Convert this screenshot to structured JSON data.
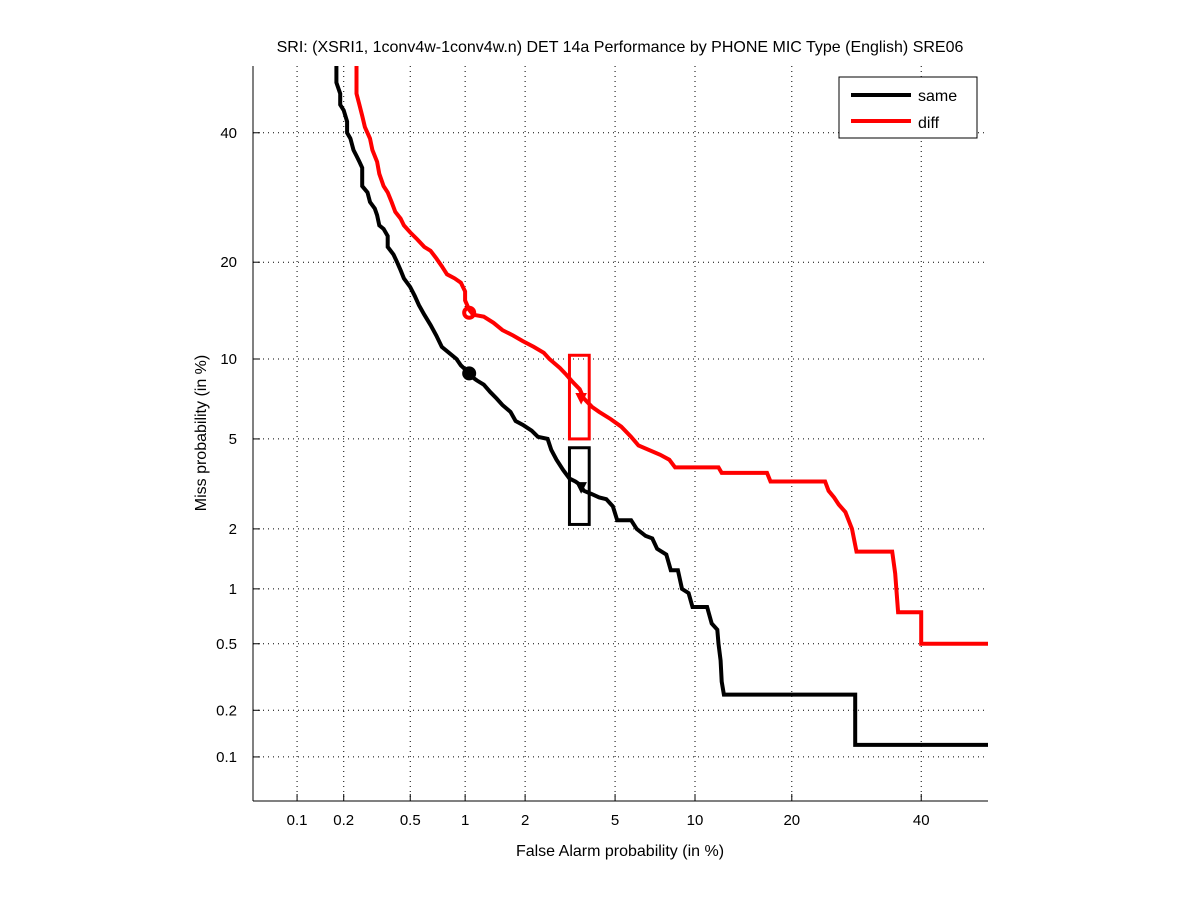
{
  "chart_data": {
    "type": "line",
    "subtype": "DET curve (normal deviate scale)",
    "title": "SRI: (XSRI1, 1conv4w-1conv4w.n) DET 14a Performance by PHONE MIC Type (English) SRE06",
    "xlabel": "False Alarm probability (in %)",
    "ylabel": "Miss probability (in %)",
    "xscale": "probit",
    "yscale": "probit",
    "xlim": [
      0.05,
      52
    ],
    "ylim": [
      0.05,
      52
    ],
    "xticks": [
      0.1,
      0.2,
      0.5,
      1,
      2,
      5,
      10,
      20,
      40
    ],
    "xtick_labels": [
      "0.1",
      "0.2",
      "0.5",
      "1",
      "2",
      "5",
      "10",
      "20",
      "40"
    ],
    "yticks": [
      0.1,
      0.2,
      0.5,
      1,
      2,
      5,
      10,
      20,
      40
    ],
    "ytick_labels": [
      "0.1",
      "0.2",
      "0.5",
      "1",
      "2",
      "5",
      "10",
      "20",
      "40"
    ],
    "grid": true,
    "legend_position": "top-right",
    "series": [
      {
        "name": "same",
        "color": "#000000",
        "points": [
          [
            0.18,
            52
          ],
          [
            0.18,
            49
          ],
          [
            0.19,
            47
          ],
          [
            0.19,
            45
          ],
          [
            0.2,
            44
          ],
          [
            0.21,
            42
          ],
          [
            0.21,
            40
          ],
          [
            0.22,
            39
          ],
          [
            0.23,
            37
          ],
          [
            0.24,
            36
          ],
          [
            0.25,
            35
          ],
          [
            0.26,
            34
          ],
          [
            0.26,
            31
          ],
          [
            0.28,
            30
          ],
          [
            0.29,
            28.5
          ],
          [
            0.31,
            27.5
          ],
          [
            0.32,
            26.5
          ],
          [
            0.33,
            25
          ],
          [
            0.35,
            24.5
          ],
          [
            0.37,
            23.5
          ],
          [
            0.37,
            22
          ],
          [
            0.4,
            21
          ],
          [
            0.42,
            20
          ],
          [
            0.44,
            19
          ],
          [
            0.46,
            18
          ],
          [
            0.5,
            17
          ],
          [
            0.53,
            16
          ],
          [
            0.56,
            15
          ],
          [
            0.6,
            14
          ],
          [
            0.65,
            13
          ],
          [
            0.7,
            12
          ],
          [
            0.75,
            11
          ],
          [
            0.82,
            10.5
          ],
          [
            0.9,
            10
          ],
          [
            0.95,
            9.5
          ],
          [
            1.0,
            9.2
          ],
          [
            1.05,
            8.8
          ],
          [
            1.15,
            8.4
          ],
          [
            1.25,
            8.1
          ],
          [
            1.35,
            7.6
          ],
          [
            1.45,
            7.2
          ],
          [
            1.55,
            6.8
          ],
          [
            1.7,
            6.4
          ],
          [
            1.8,
            5.9
          ],
          [
            1.95,
            5.7
          ],
          [
            2.15,
            5.4
          ],
          [
            2.3,
            5.1
          ],
          [
            2.55,
            5.0
          ],
          [
            2.65,
            4.5
          ],
          [
            2.8,
            4.1
          ],
          [
            3.0,
            3.7
          ],
          [
            3.2,
            3.4
          ],
          [
            3.4,
            3.3
          ],
          [
            3.55,
            3.2
          ],
          [
            3.7,
            3.0
          ],
          [
            4.0,
            2.9
          ],
          [
            4.3,
            2.8
          ],
          [
            4.6,
            2.75
          ],
          [
            4.9,
            2.55
          ],
          [
            5.1,
            2.2
          ],
          [
            5.8,
            2.2
          ],
          [
            6.1,
            2.0
          ],
          [
            6.6,
            1.85
          ],
          [
            7.0,
            1.8
          ],
          [
            7.3,
            1.6
          ],
          [
            7.9,
            1.5
          ],
          [
            8.2,
            1.25
          ],
          [
            8.7,
            1.25
          ],
          [
            9.0,
            1.0
          ],
          [
            9.5,
            0.95
          ],
          [
            9.8,
            0.8
          ],
          [
            11.0,
            0.8
          ],
          [
            11.4,
            0.65
          ],
          [
            11.9,
            0.6
          ],
          [
            12.0,
            0.5
          ],
          [
            12.2,
            0.4
          ],
          [
            12.3,
            0.3
          ],
          [
            12.5,
            0.25
          ],
          [
            29.0,
            0.25
          ],
          [
            29.0,
            0.12
          ],
          [
            52,
            0.12
          ]
        ]
      },
      {
        "name": "diff",
        "color": "#ff0000",
        "points": [
          [
            0.24,
            52
          ],
          [
            0.24,
            47
          ],
          [
            0.25,
            45
          ],
          [
            0.26,
            43
          ],
          [
            0.27,
            41
          ],
          [
            0.29,
            39
          ],
          [
            0.3,
            37
          ],
          [
            0.32,
            35
          ],
          [
            0.33,
            33
          ],
          [
            0.35,
            31
          ],
          [
            0.37,
            30
          ],
          [
            0.39,
            28.5
          ],
          [
            0.41,
            27
          ],
          [
            0.44,
            26
          ],
          [
            0.46,
            25
          ],
          [
            0.5,
            24
          ],
          [
            0.55,
            23
          ],
          [
            0.6,
            22
          ],
          [
            0.65,
            21.5
          ],
          [
            0.7,
            20.5
          ],
          [
            0.75,
            19.5
          ],
          [
            0.8,
            18.5
          ],
          [
            0.88,
            18
          ],
          [
            0.95,
            17.5
          ],
          [
            1.0,
            16.5
          ],
          [
            1.0,
            15.5
          ],
          [
            1.05,
            14.5
          ],
          [
            1.1,
            14.0
          ],
          [
            1.25,
            13.8
          ],
          [
            1.4,
            13.2
          ],
          [
            1.55,
            12.5
          ],
          [
            1.75,
            12.0
          ],
          [
            1.95,
            11.5
          ],
          [
            2.2,
            11.0
          ],
          [
            2.45,
            10.5
          ],
          [
            2.6,
            10.0
          ],
          [
            2.9,
            9.3
          ],
          [
            3.1,
            8.8
          ],
          [
            3.3,
            8.3
          ],
          [
            3.55,
            7.8
          ],
          [
            3.7,
            7.2
          ],
          [
            4.0,
            6.7
          ],
          [
            4.3,
            6.4
          ],
          [
            4.8,
            6.0
          ],
          [
            5.3,
            5.6
          ],
          [
            5.8,
            5.1
          ],
          [
            6.2,
            4.7
          ],
          [
            7.5,
            4.3
          ],
          [
            8.1,
            4.1
          ],
          [
            8.5,
            3.8
          ],
          [
            12.0,
            3.8
          ],
          [
            12.3,
            3.6
          ],
          [
            17.0,
            3.6
          ],
          [
            17.4,
            3.3
          ],
          [
            24.5,
            3.3
          ],
          [
            25.0,
            3.0
          ],
          [
            25.8,
            2.8
          ],
          [
            26.5,
            2.6
          ],
          [
            27.5,
            2.4
          ],
          [
            28.5,
            2.0
          ],
          [
            29.2,
            1.55
          ],
          [
            35.0,
            1.55
          ],
          [
            35.5,
            1.2
          ],
          [
            36.0,
            0.75
          ],
          [
            40.0,
            0.75
          ],
          [
            40.0,
            0.5
          ],
          [
            52,
            0.5
          ]
        ]
      }
    ],
    "markers": [
      {
        "series": "same",
        "type": "min DCF",
        "shape": "filled-circle",
        "x": 1.05,
        "y": 8.9
      },
      {
        "series": "diff",
        "type": "min DCF",
        "shape": "open-circle",
        "x": 1.05,
        "y": 14.2
      },
      {
        "series": "same",
        "type": "actual DCF",
        "shape": "filled-triangle",
        "x": 3.6,
        "y": 3.1
      },
      {
        "series": "diff",
        "type": "actual DCF",
        "shape": "filled-triangle",
        "x": 3.6,
        "y": 7.2
      }
    ],
    "confidence_boxes": [
      {
        "series": "same",
        "x_range": [
          3.2,
          3.9
        ],
        "y_range": [
          2.1,
          4.6
        ]
      },
      {
        "series": "diff",
        "x_range": [
          3.2,
          3.9
        ],
        "y_range": [
          5.0,
          10.3
        ]
      }
    ]
  }
}
